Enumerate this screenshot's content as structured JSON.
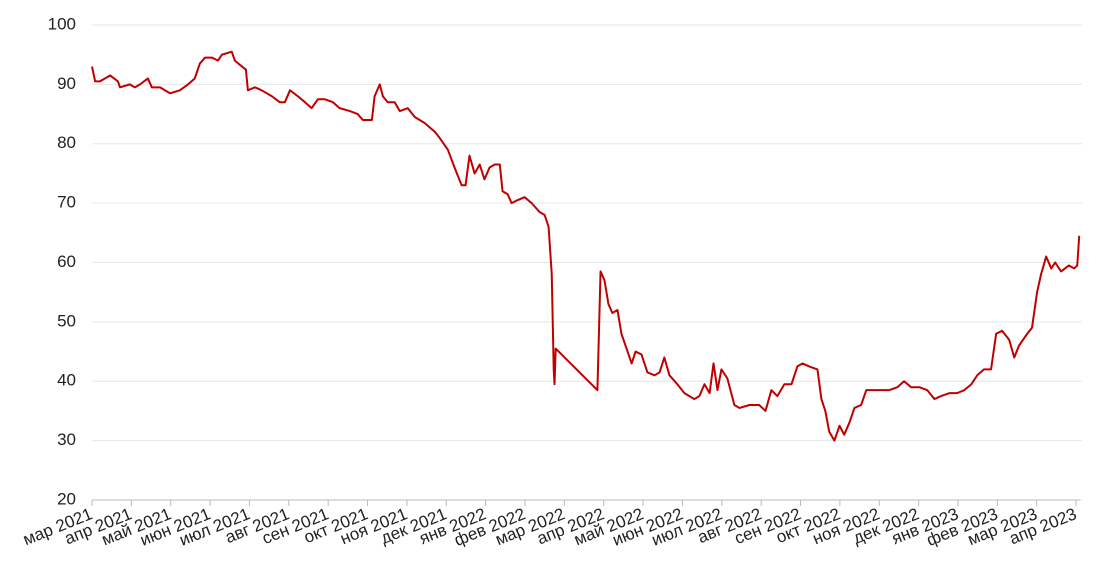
{
  "chart_data": {
    "type": "line",
    "color": "#c00000",
    "grid": true,
    "xlim": [
      0,
      25.1
    ],
    "ylim": [
      20,
      100
    ],
    "yticks": [
      20,
      30,
      40,
      50,
      60,
      70,
      80,
      90,
      100
    ],
    "xticks": [
      {
        "value": 0,
        "label": "мар 2021"
      },
      {
        "value": 1,
        "label": "апр 2021"
      },
      {
        "value": 2,
        "label": "май 2021"
      },
      {
        "value": 3,
        "label": "июн 2021"
      },
      {
        "value": 4,
        "label": "июл 2021"
      },
      {
        "value": 5,
        "label": "авг 2021"
      },
      {
        "value": 6,
        "label": "сен 2021"
      },
      {
        "value": 7,
        "label": "окт 2021"
      },
      {
        "value": 8,
        "label": "ноя 2021"
      },
      {
        "value": 9,
        "label": "дек 2021"
      },
      {
        "value": 10,
        "label": "янв 2022"
      },
      {
        "value": 11,
        "label": "фев 2022"
      },
      {
        "value": 12,
        "label": "мар 2022"
      },
      {
        "value": 13,
        "label": "апр 2022"
      },
      {
        "value": 14,
        "label": "май 2022"
      },
      {
        "value": 15,
        "label": "июн 2022"
      },
      {
        "value": 16,
        "label": "июл 2022"
      },
      {
        "value": 17,
        "label": "авг 2022"
      },
      {
        "value": 18,
        "label": "сен 2022"
      },
      {
        "value": 19,
        "label": "окт 2022"
      },
      {
        "value": 20,
        "label": "ноя 2022"
      },
      {
        "value": 21,
        "label": "дек 2022"
      },
      {
        "value": 22,
        "label": "янв 2023"
      },
      {
        "value": 23,
        "label": "фев 2023"
      },
      {
        "value": 24,
        "label": "мар 2023"
      },
      {
        "value": 25,
        "label": "апр 2023"
      }
    ],
    "x": [
      0,
      0.08,
      0.2,
      0.46,
      0.66,
      0.71,
      0.96,
      1.09,
      1.22,
      1.42,
      1.52,
      1.73,
      1.98,
      2.23,
      2.44,
      2.61,
      2.74,
      2.87,
      3.05,
      3.2,
      3.3,
      3.55,
      3.63,
      3.81,
      3.91,
      3.96,
      4.14,
      4.31,
      4.57,
      4.77,
      4.9,
      5.03,
      5.23,
      5.41,
      5.58,
      5.74,
      5.91,
      6.12,
      6.29,
      6.55,
      6.75,
      6.88,
      7.11,
      7.18,
      7.31,
      7.39,
      7.51,
      7.69,
      7.82,
      8.02,
      8.2,
      8.45,
      8.71,
      8.83,
      9.04,
      9.21,
      9.39,
      9.49,
      9.59,
      9.72,
      9.85,
      9.97,
      10.1,
      10.23,
      10.36,
      10.43,
      10.56,
      10.66,
      10.81,
      10.99,
      11.17,
      11.37,
      11.5,
      11.6,
      11.68,
      11.73,
      11.75,
      11.78,
      12.84,
      12.92,
      13.02,
      13.12,
      13.22,
      13.35,
      13.45,
      13.58,
      13.71,
      13.81,
      13.96,
      14.11,
      14.29,
      14.42,
      14.54,
      14.67,
      14.87,
      15.05,
      15.3,
      15.43,
      15.56,
      15.69,
      15.79,
      15.89,
      15.99,
      16.14,
      16.32,
      16.45,
      16.7,
      16.95,
      17.11,
      17.26,
      17.41,
      17.59,
      17.77,
      17.92,
      18.05,
      18.22,
      18.43,
      18.53,
      18.63,
      18.73,
      18.86,
      18.99,
      19.11,
      19.24,
      19.37,
      19.54,
      19.67,
      19.87,
      20.05,
      20.25,
      20.46,
      20.63,
      20.81,
      21.02,
      21.22,
      21.4,
      21.57,
      21.78,
      21.98,
      22.16,
      22.34,
      22.49,
      22.66,
      22.84,
      22.97,
      23.12,
      23.3,
      23.43,
      23.55,
      23.76,
      23.88,
      24.01,
      24.11,
      24.24,
      24.37,
      24.47,
      24.62,
      24.82,
      24.95,
      25.03,
      25.08
    ],
    "values": [
      93,
      90.5,
      90.5,
      91.5,
      90.5,
      89.5,
      90,
      89.5,
      90,
      91,
      89.5,
      89.5,
      88.5,
      89,
      90,
      91,
      93.5,
      94.5,
      94.5,
      94,
      95,
      95.5,
      94,
      93,
      92.5,
      89,
      89.5,
      89,
      88,
      87,
      87,
      89,
      88,
      87,
      86,
      87.5,
      87.5,
      87,
      86,
      85.5,
      85,
      84,
      84,
      88,
      90,
      88,
      87,
      87,
      85.5,
      86,
      84.5,
      83.5,
      82,
      81,
      79,
      76,
      73,
      73,
      78,
      75,
      76.5,
      74,
      76,
      76.5,
      76.5,
      72,
      71.5,
      70,
      70.5,
      71,
      70,
      68.5,
      68,
      66,
      58,
      42,
      39.5,
      45.5,
      38.5,
      58.5,
      57,
      53,
      51.5,
      52,
      48,
      45.5,
      43,
      45,
      44.5,
      41.5,
      41,
      41.5,
      44,
      41,
      39.5,
      38,
      37,
      37.5,
      39.5,
      38,
      43,
      38.5,
      42,
      40.5,
      36,
      35.5,
      36,
      36,
      35,
      38.5,
      37.5,
      39.5,
      39.5,
      42.5,
      43,
      42.5,
      42,
      37,
      35,
      31.5,
      30,
      32.5,
      31,
      33,
      35.5,
      36,
      38.5,
      38.5,
      38.5,
      38.5,
      39,
      40,
      39,
      39,
      38.5,
      37,
      37.5,
      38,
      38,
      38.5,
      39.5,
      41,
      42,
      42,
      48,
      48.5,
      47,
      44,
      46,
      48,
      49,
      55,
      58,
      61,
      59,
      60,
      58.5,
      59.5,
      59,
      59.5,
      64.5
    ]
  }
}
